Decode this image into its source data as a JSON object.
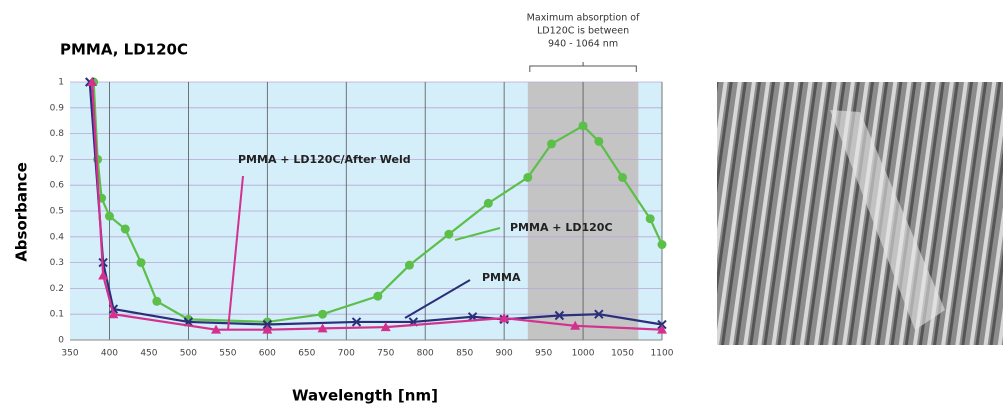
{
  "chart_data": {
    "type": "line",
    "title": "PMMA, LD120C",
    "x_label": "Wavelength [nm]",
    "y_label": "Absorbance",
    "xlim": [
      350,
      1100
    ],
    "ylim": [
      0,
      1
    ],
    "xticks": [
      350,
      400,
      450,
      500,
      550,
      600,
      650,
      700,
      750,
      800,
      850,
      900,
      950,
      1000,
      1050,
      1100
    ],
    "yticks": [
      0,
      0.1,
      0.2,
      0.3,
      0.4,
      0.5,
      0.6,
      0.7,
      0.8,
      0.9,
      1
    ],
    "grid": true,
    "highlight": {
      "range": [
        930,
        1070
      ],
      "label": [
        "Maximum absorption of",
        "LD120C is between",
        "940 - 1064 nm"
      ]
    },
    "series": [
      {
        "name": "PMMA + LD120C",
        "color": "#5cbf4a",
        "marker": "circle",
        "x": [
          380,
          385,
          390,
          400,
          420,
          440,
          460,
          500,
          600,
          670,
          740,
          780,
          830,
          880,
          930,
          960,
          1000,
          1020,
          1050,
          1085,
          1100
        ],
        "values": [
          1.0,
          0.7,
          0.55,
          0.48,
          0.43,
          0.3,
          0.15,
          0.08,
          0.07,
          0.1,
          0.17,
          0.29,
          0.41,
          0.53,
          0.63,
          0.76,
          0.83,
          0.77,
          0.63,
          0.47,
          0.37
        ]
      },
      {
        "name": "PMMA",
        "color": "#2b2f7a",
        "marker": "x",
        "x": [
          375,
          392,
          405,
          500,
          600,
          713,
          785,
          860,
          900,
          970,
          1020,
          1100
        ],
        "values": [
          1.0,
          0.3,
          0.12,
          0.07,
          0.06,
          0.07,
          0.07,
          0.09,
          0.08,
          0.095,
          0.1,
          0.06
        ]
      },
      {
        "name": "PMMA + LD120C/After Weld",
        "color": "#d4318f",
        "marker": "triangle",
        "x": [
          378,
          392,
          405,
          535,
          600,
          670,
          750,
          900,
          990,
          1100
        ],
        "values": [
          1.0,
          0.25,
          0.1,
          0.04,
          0.04,
          0.045,
          0.05,
          0.085,
          0.055,
          0.04
        ]
      }
    ]
  }
}
